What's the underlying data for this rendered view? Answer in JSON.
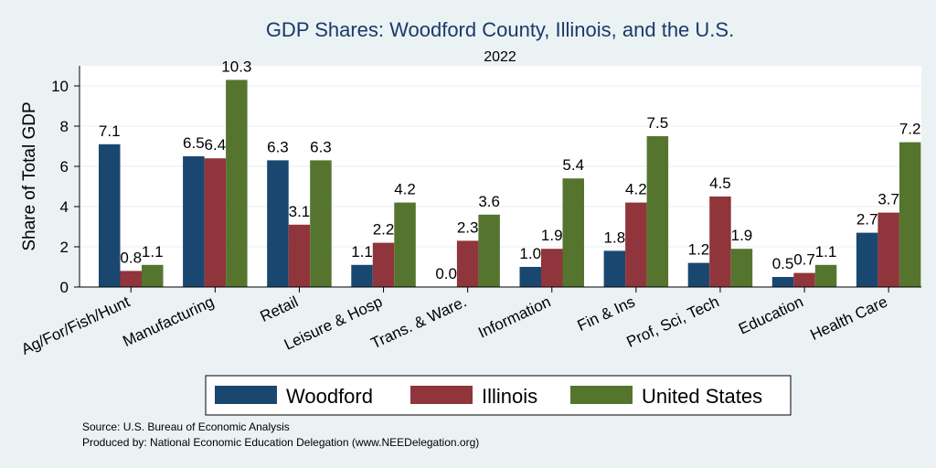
{
  "chart_data": {
    "type": "bar",
    "title": "GDP Shares: Woodford County, Illinois, and the U.S.",
    "subtitle": "2022",
    "ylabel": "Share of Total GDP",
    "xlabel": "",
    "ylim": [
      0,
      11
    ],
    "yticks": [
      0,
      2,
      4,
      6,
      8,
      10
    ],
    "grid": true,
    "legend": "bottom",
    "categories": [
      "Ag/For/Fish/Hunt",
      "Manufacturing",
      "Retail",
      "Leisure & Hosp",
      "Trans. & Ware.",
      "Information",
      "Fin & Ins",
      "Prof, Sci, Tech",
      "Education",
      "Health Care"
    ],
    "series": [
      {
        "name": "Woodford",
        "color": "#1a476f",
        "values": [
          7.1,
          6.5,
          6.3,
          1.1,
          0.0,
          1.0,
          1.8,
          1.2,
          0.5,
          2.7
        ]
      },
      {
        "name": "Illinois",
        "color": "#90353b",
        "values": [
          0.8,
          6.4,
          3.1,
          2.2,
          2.3,
          1.9,
          4.2,
          4.5,
          0.7,
          3.7
        ]
      },
      {
        "name": "United States",
        "color": "#55752f",
        "values": [
          1.1,
          10.3,
          6.3,
          4.2,
          3.6,
          5.4,
          7.5,
          1.9,
          1.1,
          7.2
        ]
      }
    ],
    "notes": [
      "Source: U.S. Bureau of Economic Analysis",
      "Produced by: National Economic Education Delegation (www.NEEDelegation.org)"
    ]
  }
}
